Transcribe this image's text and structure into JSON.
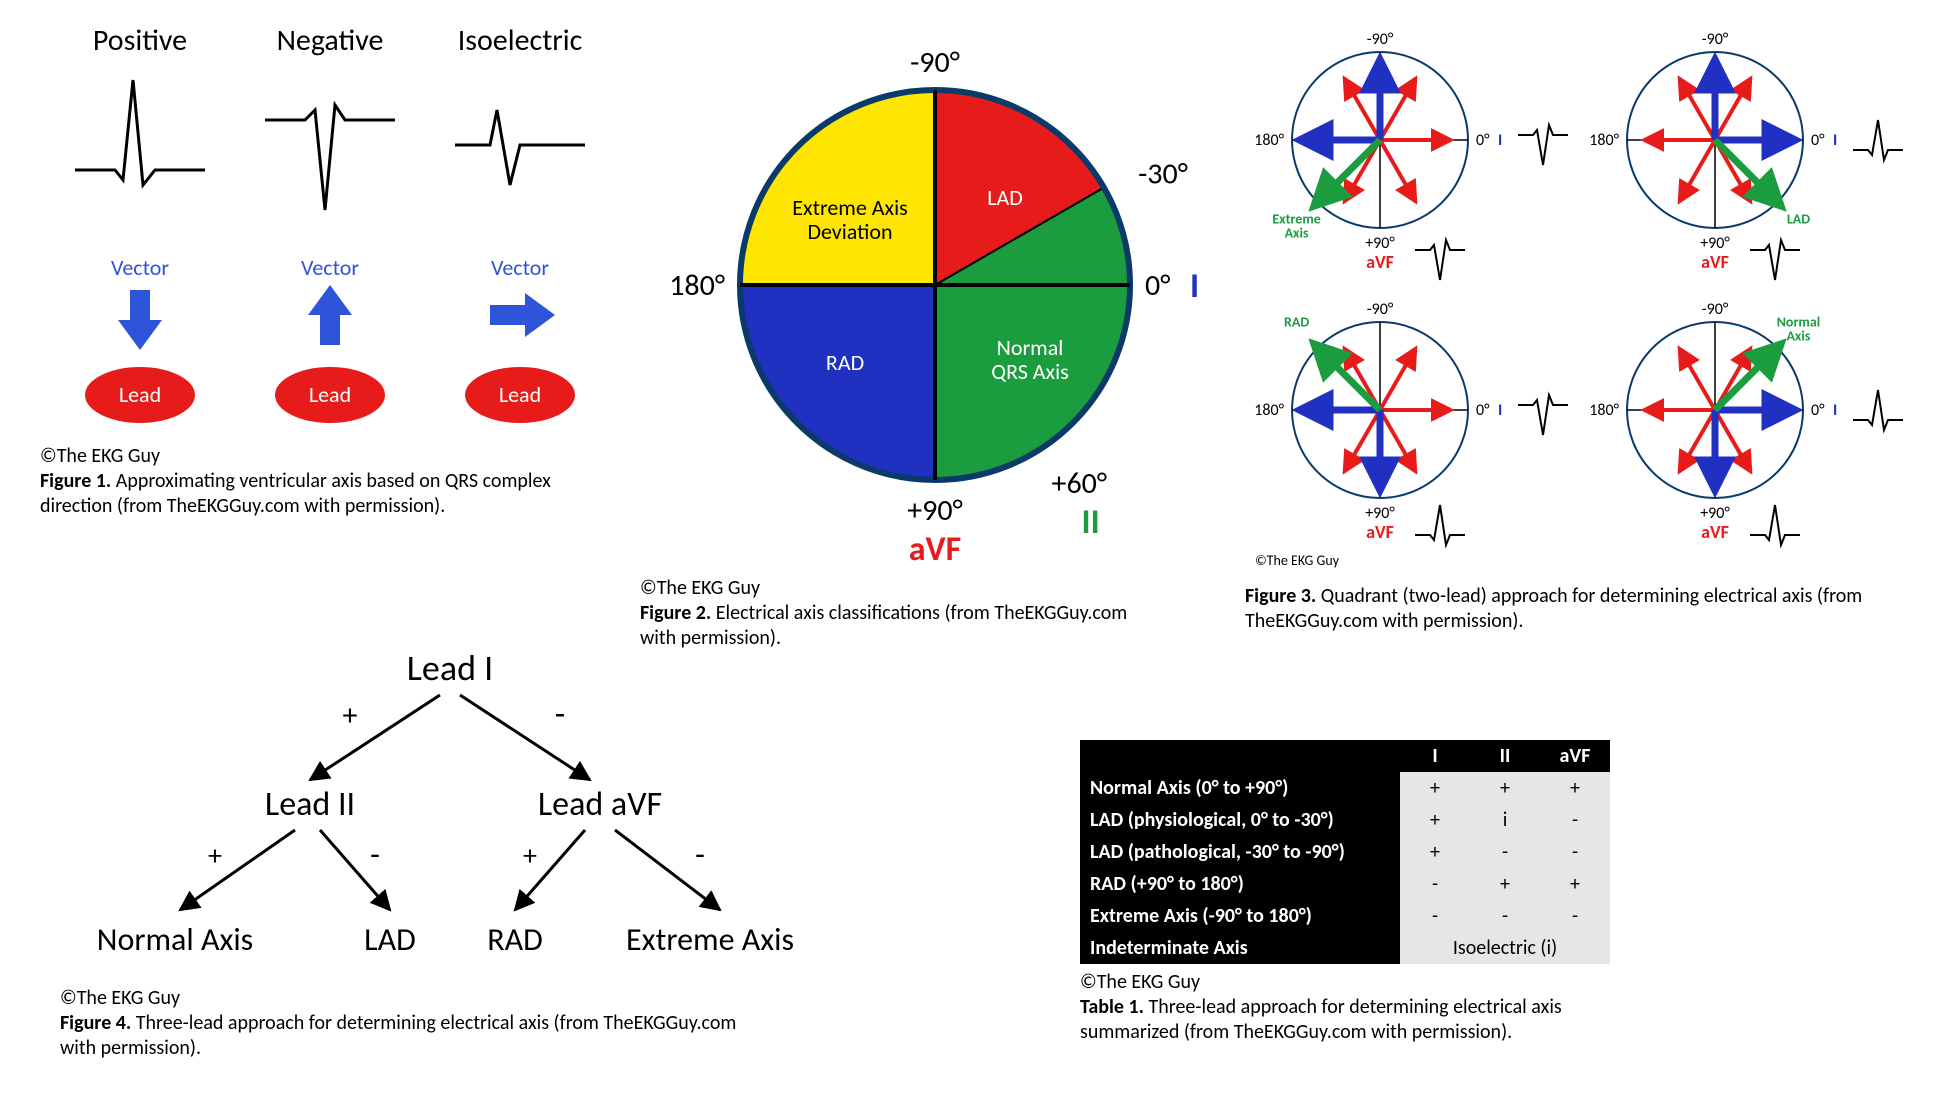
{
  "fig1": {
    "copyright": "©The EKG Guy",
    "caption_bold": "Figure 1.",
    "caption_text": " Approximating ventricular axis based on QRS complex direction (from TheEKGGuy.com with permission).",
    "vector_label": "Vector",
    "lead_label": "Lead",
    "cols": [
      {
        "title": "Positive",
        "arrow": "down"
      },
      {
        "title": "Negative",
        "arrow": "up"
      },
      {
        "title": "Isoelectric",
        "arrow": "right"
      }
    ],
    "colors": {
      "vector_text": "#2e54d9",
      "arrow": "#2e54d9",
      "lead_fill": "#e81b1b",
      "lead_text": "#ffffff",
      "title": "#000000",
      "wave": "#000000"
    }
  },
  "fig2": {
    "copyright": "©The EKG Guy",
    "caption_bold": "Figure 2.",
    "caption_text": " Electrical axis classifications (from TheEKGGuy.com with permission).",
    "angles": {
      "top": "-90°",
      "right_top": "-30°",
      "right": "0°",
      "right_bottom": "+60°",
      "bottom": "+90°",
      "left": "180°"
    },
    "leads": {
      "I": "I",
      "II": "II",
      "aVF": "aVF"
    },
    "sectors": {
      "normal": {
        "label": "Normal\nQRS Axis",
        "color": "#1a9c3f"
      },
      "lad": {
        "label": "LAD",
        "color": "#e81b1b"
      },
      "extreme": {
        "label": "Extreme Axis\nDeviation",
        "color": "#ffe600"
      },
      "rad": {
        "label": "RAD",
        "color": "#2030c0"
      }
    },
    "lead_colors": {
      "I": "#2030c0",
      "II": "#1a9c3f",
      "aVF": "#e81b1b"
    },
    "angle_color": "#000000",
    "outline": "#0a3a6a"
  },
  "fig3": {
    "copyright": "©The EKG Guy",
    "caption_bold": "Figure 3.",
    "caption_text": " Quadrant (two-lead) approach for determining electrical axis (from TheEKGGuy.com with permission).",
    "labels": {
      "top": "-90°",
      "bottom": "+90°",
      "left": "180°",
      "right": "0°",
      "I": "I",
      "aVF": "aVF"
    },
    "quadrants": [
      {
        "name": "Extreme\nAxis",
        "name_color": "#1a9c3f",
        "green_angle": 135,
        "i_wave": "neg",
        "avf_wave": "neg"
      },
      {
        "name": "LAD",
        "name_color": "#1a9c3f",
        "green_angle": 45,
        "i_wave": "pos",
        "avf_wave": "neg"
      },
      {
        "name": "RAD",
        "name_color": "#1a9c3f",
        "green_angle": 225,
        "i_wave": "neg",
        "avf_wave": "pos"
      },
      {
        "name": "Normal\nAxis",
        "name_color": "#1a9c3f",
        "green_angle": 315,
        "i_wave": "pos",
        "avf_wave": "pos"
      }
    ],
    "colors": {
      "circle": "#0a3a6a",
      "blue": "#2030c0",
      "red": "#e81b1b",
      "green": "#1a9c3f",
      "text": "#000000",
      "I": "#2030c0",
      "aVF": "#e81b1b"
    }
  },
  "fig4": {
    "copyright": "©The EKG Guy",
    "caption_bold": "Figure 4.",
    "caption_text": " Three-lead approach for determining electrical axis (from TheEKGGuy.com with permission).",
    "root": "Lead I",
    "left": "Lead II",
    "right": "Lead aVF",
    "leaves": [
      "Normal Axis",
      "LAD",
      "RAD",
      "Extreme Axis"
    ],
    "plus": "+",
    "minus": "-"
  },
  "table1": {
    "copyright": "©The EKG Guy",
    "caption_bold": "Table 1.",
    "caption_text": " Three-lead approach for determining electrical axis summarized (from TheEKGGuy.com with permission).",
    "headers": [
      "",
      "I",
      "II",
      "aVF"
    ],
    "rows": [
      {
        "h": "Normal Axis (0° to +90°)",
        "c": [
          "+",
          "+",
          "+"
        ]
      },
      {
        "h": "LAD (physiological, 0° to -30°)",
        "c": [
          "+",
          "i",
          "-"
        ]
      },
      {
        "h": "LAD (pathological, -30° to -90°)",
        "c": [
          "+",
          "-",
          "-"
        ]
      },
      {
        "h": "RAD (+90° to 180°)",
        "c": [
          "-",
          "+",
          "+"
        ]
      },
      {
        "h": "Extreme Axis (-90° to 180°)",
        "c": [
          "-",
          "-",
          "-"
        ]
      }
    ],
    "indet": {
      "h": "Indeterminate Axis",
      "v": "Isoelectric (i)"
    }
  }
}
